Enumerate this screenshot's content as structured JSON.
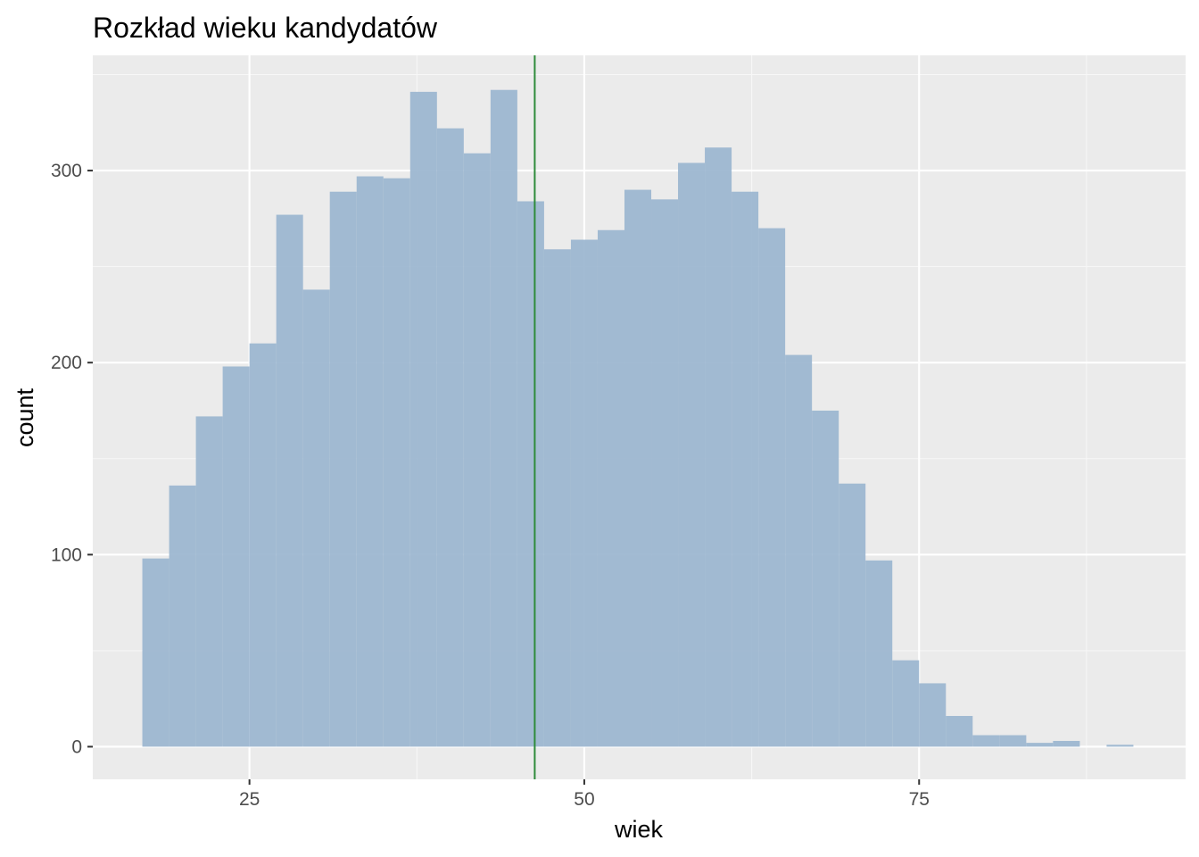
{
  "chart_data": {
    "type": "bar",
    "subtype": "histogram",
    "title": "Rozkład wieku kandydatów",
    "xlabel": "wiek",
    "ylabel": "count",
    "xlim": [
      13.3,
      94.9
    ],
    "ylim": [
      -17,
      360
    ],
    "x_ticks": [
      25,
      50,
      75
    ],
    "y_ticks": [
      0,
      100,
      200,
      300
    ],
    "x_minor_ticks": [
      12.5,
      37.5,
      62.5,
      87.5
    ],
    "y_minor_ticks": [
      50,
      150,
      250,
      350
    ],
    "grid": true,
    "bin_width": 2,
    "bins": [
      {
        "x0": 17,
        "x1": 19,
        "count": 98
      },
      {
        "x0": 19,
        "x1": 21,
        "count": 136
      },
      {
        "x0": 21,
        "x1": 23,
        "count": 172
      },
      {
        "x0": 23,
        "x1": 25,
        "count": 198
      },
      {
        "x0": 25,
        "x1": 27,
        "count": 210
      },
      {
        "x0": 27,
        "x1": 29,
        "count": 277
      },
      {
        "x0": 29,
        "x1": 31,
        "count": 238
      },
      {
        "x0": 31,
        "x1": 33,
        "count": 289
      },
      {
        "x0": 33,
        "x1": 35,
        "count": 297
      },
      {
        "x0": 35,
        "x1": 37,
        "count": 296
      },
      {
        "x0": 37,
        "x1": 39,
        "count": 341
      },
      {
        "x0": 39,
        "x1": 41,
        "count": 322
      },
      {
        "x0": 41,
        "x1": 43,
        "count": 309
      },
      {
        "x0": 43,
        "x1": 45,
        "count": 342
      },
      {
        "x0": 45,
        "x1": 47,
        "count": 284
      },
      {
        "x0": 47,
        "x1": 49,
        "count": 259
      },
      {
        "x0": 49,
        "x1": 51,
        "count": 264
      },
      {
        "x0": 51,
        "x1": 53,
        "count": 269
      },
      {
        "x0": 53,
        "x1": 55,
        "count": 290
      },
      {
        "x0": 55,
        "x1": 57,
        "count": 285
      },
      {
        "x0": 57,
        "x1": 59,
        "count": 304
      },
      {
        "x0": 59,
        "x1": 61,
        "count": 312
      },
      {
        "x0": 61,
        "x1": 63,
        "count": 289
      },
      {
        "x0": 63,
        "x1": 65,
        "count": 270
      },
      {
        "x0": 65,
        "x1": 67,
        "count": 204
      },
      {
        "x0": 67,
        "x1": 69,
        "count": 175
      },
      {
        "x0": 69,
        "x1": 71,
        "count": 137
      },
      {
        "x0": 71,
        "x1": 73,
        "count": 97
      },
      {
        "x0": 73,
        "x1": 75,
        "count": 45
      },
      {
        "x0": 75,
        "x1": 77,
        "count": 33
      },
      {
        "x0": 77,
        "x1": 79,
        "count": 16
      },
      {
        "x0": 79,
        "x1": 81,
        "count": 6
      },
      {
        "x0": 81,
        "x1": 83,
        "count": 6
      },
      {
        "x0": 83,
        "x1": 85,
        "count": 2
      },
      {
        "x0": 85,
        "x1": 87,
        "count": 3
      },
      {
        "x0": 87,
        "x1": 89,
        "count": 0
      },
      {
        "x0": 89,
        "x1": 91,
        "count": 1
      }
    ],
    "reference_line": {
      "orientation": "vertical",
      "x": 46.3,
      "color": "#2e8b3a"
    },
    "colors": {
      "bar_fill": "#9ab5cf",
      "panel_bg": "#ebebeb",
      "grid_major": "#ffffff",
      "grid_minor": "#f7f7f7",
      "tick_label": "#4d4d4d",
      "tick_mark": "#333333"
    }
  }
}
